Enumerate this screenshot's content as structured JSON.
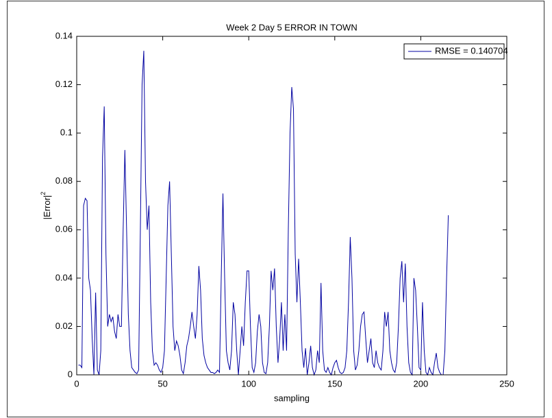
{
  "chart_data": {
    "type": "line",
    "title": "Week 2 Day 5 ERROR IN TOWN",
    "xlabel": "sampling",
    "ylabel": {
      "text": "|Error|",
      "superscript": "2"
    },
    "xlim": [
      0,
      250
    ],
    "xticks": [
      0,
      50,
      100,
      150,
      200,
      250
    ],
    "ylim": [
      0,
      0.14
    ],
    "yticks": [
      0,
      0.02,
      0.04,
      0.06,
      0.08,
      0.1,
      0.12,
      0.14
    ],
    "grid": false,
    "legend": "upper right",
    "x": [
      1,
      2,
      3,
      4,
      5,
      6,
      7,
      8,
      9,
      10,
      11,
      12,
      13,
      14,
      15,
      16,
      17,
      18,
      19,
      20,
      21,
      22,
      23,
      24,
      25,
      26,
      27,
      28,
      29,
      30,
      31,
      32,
      33,
      34,
      35,
      36,
      37,
      38,
      39,
      40,
      41,
      42,
      43,
      44,
      45,
      46,
      47,
      48,
      49,
      50,
      51,
      52,
      53,
      54,
      55,
      56,
      57,
      58,
      59,
      60,
      61,
      62,
      63,
      64,
      65,
      66,
      67,
      68,
      69,
      70,
      71,
      72,
      73,
      74,
      75,
      76,
      77,
      78,
      79,
      80,
      81,
      82,
      83,
      84,
      85,
      86,
      87,
      88,
      89,
      90,
      91,
      92,
      93,
      94,
      95,
      96,
      97,
      98,
      99,
      100,
      101,
      102,
      103,
      104,
      105,
      106,
      107,
      108,
      109,
      110,
      111,
      112,
      113,
      114,
      115,
      116,
      117,
      118,
      119,
      120,
      121,
      122,
      123,
      124,
      125,
      126,
      127,
      128,
      129,
      130,
      131,
      132,
      133,
      134,
      135,
      136,
      137,
      138,
      139,
      140,
      141,
      142,
      143,
      144,
      145,
      146,
      147,
      148,
      149,
      150,
      151,
      152,
      153,
      154,
      155,
      156,
      157,
      158,
      159,
      160,
      161,
      162,
      163,
      164,
      165,
      166,
      167,
      168,
      169,
      170,
      171,
      172,
      173,
      174,
      175,
      176,
      177,
      178,
      179,
      180,
      181,
      182,
      183,
      184,
      185,
      186,
      187,
      188,
      189,
      190,
      191,
      192,
      193,
      194,
      195,
      196,
      197,
      198,
      199,
      200,
      201,
      202,
      203,
      204,
      205,
      206,
      207,
      208,
      209,
      210,
      211,
      212,
      213,
      214,
      215,
      216
    ],
    "series": [
      {
        "name": "RMSE = 0.140704",
        "color": "#0000a0",
        "values": [
          0.004,
          0.004,
          0.003,
          0.07,
          0.073,
          0.072,
          0.04,
          0.035,
          0.015,
          0.0,
          0.034,
          0.002,
          0.0,
          0.01,
          0.09,
          0.111,
          0.05,
          0.02,
          0.025,
          0.022,
          0.024,
          0.018,
          0.015,
          0.025,
          0.02,
          0.02,
          0.06,
          0.093,
          0.06,
          0.025,
          0.01,
          0.003,
          0.002,
          0.001,
          0.0005,
          0.002,
          0.06,
          0.12,
          0.134,
          0.08,
          0.06,
          0.07,
          0.03,
          0.01,
          0.004,
          0.005,
          0.004,
          0.002,
          0.001,
          0.003,
          0.01,
          0.04,
          0.07,
          0.08,
          0.05,
          0.02,
          0.01,
          0.014,
          0.012,
          0.008,
          0.002,
          0.0005,
          0.005,
          0.012,
          0.015,
          0.02,
          0.026,
          0.02,
          0.015,
          0.025,
          0.045,
          0.035,
          0.015,
          0.008,
          0.005,
          0.003,
          0.002,
          0.001,
          0.001,
          0.0005,
          0.001,
          0.002,
          0.001,
          0.04,
          0.075,
          0.04,
          0.01,
          0.005,
          0.002,
          0.01,
          0.03,
          0.025,
          0.01,
          0.0,
          0.01,
          0.02,
          0.012,
          0.03,
          0.043,
          0.043,
          0.02,
          0.003,
          0.001,
          0.005,
          0.018,
          0.025,
          0.02,
          0.005,
          0.001,
          0.0005,
          0.005,
          0.02,
          0.043,
          0.035,
          0.044,
          0.02,
          0.005,
          0.015,
          0.03,
          0.01,
          0.025,
          0.01,
          0.06,
          0.1,
          0.119,
          0.11,
          0.05,
          0.03,
          0.048,
          0.03,
          0.01,
          0.003,
          0.011,
          0.0,
          0.005,
          0.012,
          0.003,
          0.0,
          0.002,
          0.01,
          0.005,
          0.038,
          0.01,
          0.002,
          0.001,
          0.003,
          0.001,
          0.0,
          0.003,
          0.005,
          0.006,
          0.003,
          0.001,
          0.0005,
          0.001,
          0.003,
          0.01,
          0.03,
          0.057,
          0.04,
          0.01,
          0.002,
          0.004,
          0.01,
          0.02,
          0.025,
          0.026,
          0.015,
          0.005,
          0.01,
          0.015,
          0.005,
          0.003,
          0.01,
          0.005,
          0.003,
          0.002,
          0.01,
          0.026,
          0.02,
          0.026,
          0.01,
          0.005,
          0.002,
          0.001,
          0.005,
          0.02,
          0.04,
          0.047,
          0.03,
          0.046,
          0.02,
          0.005,
          0.001,
          0.0,
          0.04,
          0.035,
          0.02,
          0.003,
          0.002,
          0.03,
          0.01,
          0.001,
          0.0,
          0.003,
          0.001,
          0.0,
          0.005,
          0.009,
          0.003,
          0.001,
          0.0,
          0.0,
          0.01,
          0.04,
          0.066
        ]
      }
    ]
  }
}
